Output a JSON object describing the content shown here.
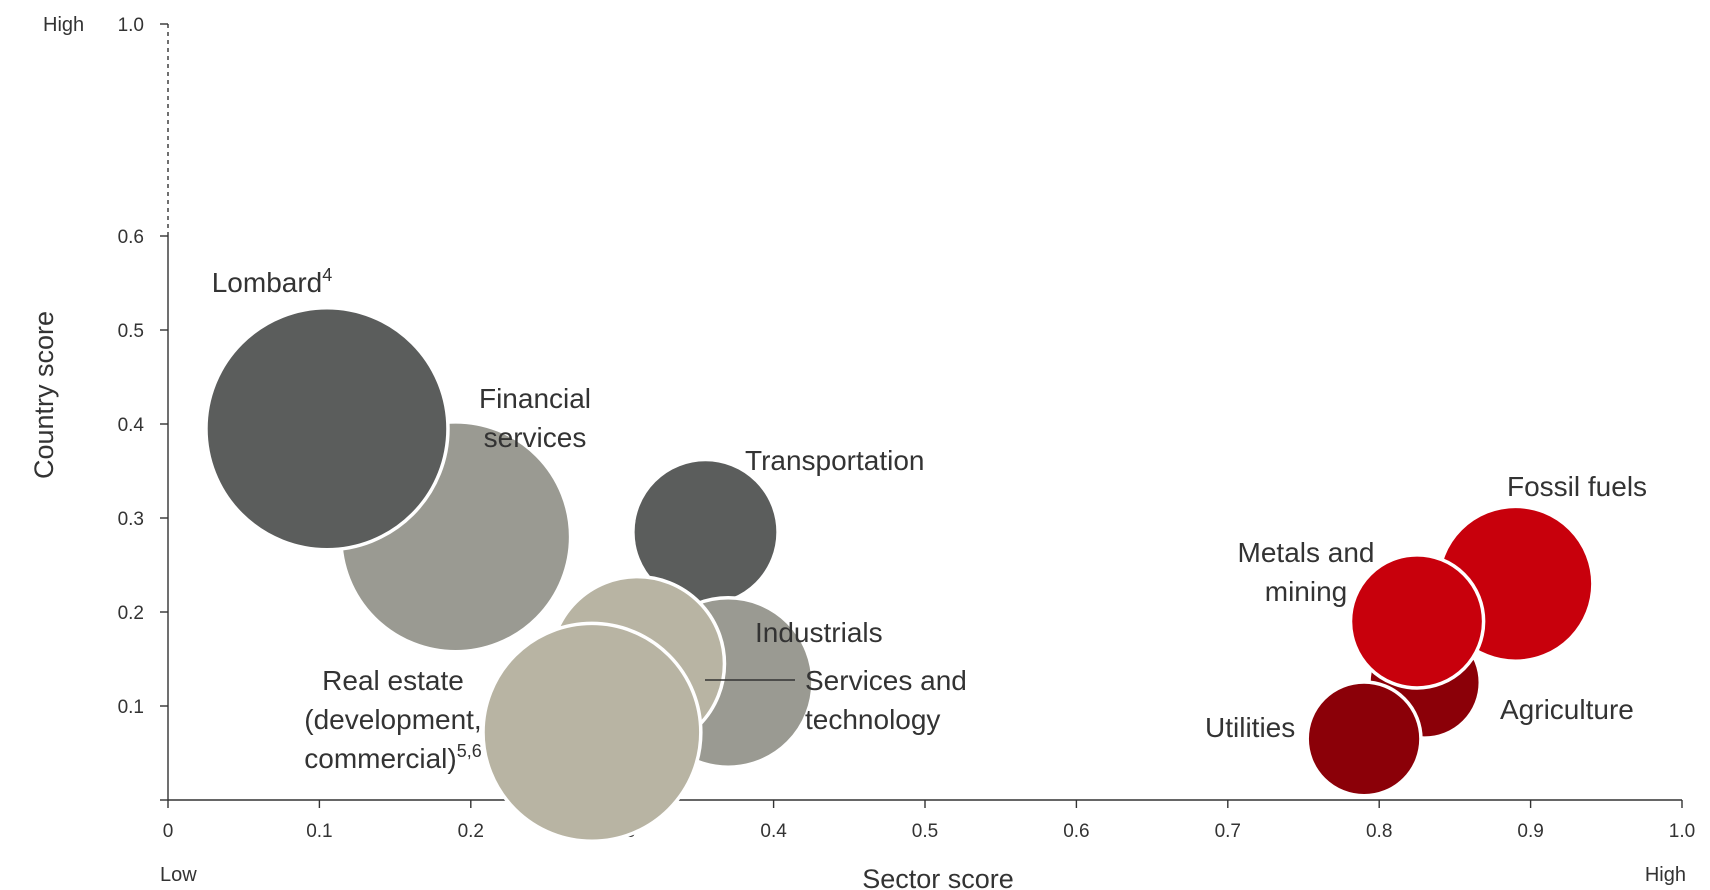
{
  "chart_data": {
    "type": "scatter",
    "title": "",
    "xlabel": "Sector score",
    "ylabel": "Country score",
    "xlim": [
      0,
      1.0
    ],
    "ylim": [
      0,
      1.0
    ],
    "y_axis_break": [
      0.6,
      1.0
    ],
    "x_ticks": [
      "0",
      "0.1",
      "0.2",
      "0.3",
      "0.4",
      "0.5",
      "0.6",
      "0.7",
      "0.8",
      "0.9",
      "1.0"
    ],
    "y_ticks": [
      "0.1",
      "0.2",
      "0.3",
      "0.4",
      "0.5",
      "0.6",
      "1.0"
    ],
    "x_low_label": "Low",
    "x_high_label": "High",
    "y_high_label": "High",
    "grid": false,
    "legend": "none",
    "bubble_size_unit": "relative",
    "bubbles": [
      {
        "label": "Financial services",
        "lines": [
          "Financial",
          "services"
        ],
        "sup": "",
        "x": 0.19,
        "y": 0.28,
        "size": 0.95,
        "color": "#9a9a92"
      },
      {
        "label": "Lombard",
        "lines": [
          "Lombard"
        ],
        "sup": "4",
        "x": 0.105,
        "y": 0.395,
        "size": 1.0,
        "color": "#5b5d5c"
      },
      {
        "label": "Transportation",
        "lines": [
          "Transportation"
        ],
        "sup": "",
        "x": 0.355,
        "y": 0.285,
        "size": 0.6,
        "color": "#5b5d5c"
      },
      {
        "label": "Industrials",
        "lines": [
          "Industrials"
        ],
        "sup": "",
        "x": 0.37,
        "y": 0.125,
        "size": 0.7,
        "color": "#9a9a92"
      },
      {
        "label": "Services and technology",
        "lines": [
          "Services and",
          "technology"
        ],
        "sup": "",
        "x": 0.31,
        "y": 0.145,
        "size": 0.72,
        "color": "#b8b4a3"
      },
      {
        "label": "Real estate (development, commercial)",
        "lines": [
          "Real estate",
          "(development,",
          "commercial)"
        ],
        "sup": "5,6",
        "x": 0.28,
        "y": 0.072,
        "size": 0.9,
        "color": "#b8b4a3"
      },
      {
        "label": "Fossil fuels",
        "lines": [
          "Fossil fuels"
        ],
        "sup": "",
        "x": 0.89,
        "y": 0.23,
        "size": 0.64,
        "color": "#c8000c"
      },
      {
        "label": "Agriculture",
        "lines": [
          "Agriculture"
        ],
        "sup": "",
        "x": 0.83,
        "y": 0.125,
        "size": 0.46,
        "color": "#8b0008"
      },
      {
        "label": "Metals and mining",
        "lines": [
          "Metals and",
          "mining"
        ],
        "sup": "",
        "x": 0.825,
        "y": 0.19,
        "size": 0.55,
        "color": "#c8000c"
      },
      {
        "label": "Utilities",
        "lines": [
          "Utilities"
        ],
        "sup": "",
        "x": 0.79,
        "y": 0.065,
        "size": 0.47,
        "color": "#8b0008"
      }
    ]
  }
}
